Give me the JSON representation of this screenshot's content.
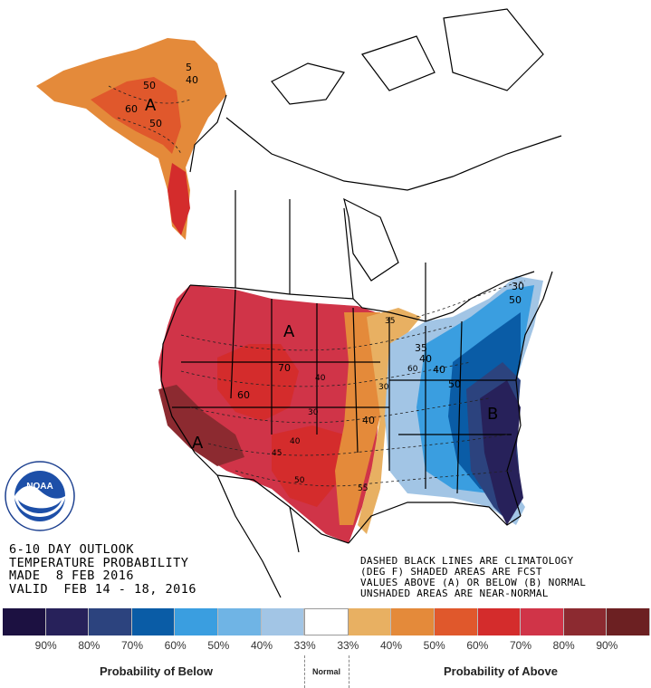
{
  "caption": {
    "line1": "6-10 DAY OUTLOOK",
    "line2": "TEMPERATURE PROBABILITY",
    "line3": "MADE  8 FEB 2016",
    "line4": "VALID  FEB 14 - 18, 2016",
    "note1": "DASHED BLACK LINES ARE CLIMATOLOGY",
    "note2": "(DEG F) SHADED AREAS ARE FCST",
    "note3": "VALUES ABOVE (A) OR BELOW (B) NORMAL",
    "note4": "UNSHADED AREAS ARE NEAR-NORMAL"
  },
  "map_labels": {
    "above_alaska": "A",
    "above_plains": "A",
    "above_southwest": "A",
    "below_east": "B",
    "climo": [
      "5",
      "40",
      "50",
      "60",
      "50",
      "70",
      "60",
      "30",
      "40",
      "45",
      "55",
      "50",
      "40",
      "30",
      "35",
      "40",
      "60",
      "50",
      "40",
      "50",
      "30",
      "35",
      "40"
    ]
  },
  "legend": {
    "colors": [
      "#1c1141",
      "#27215a",
      "#2c437e",
      "#0a5ca6",
      "#3a9ee0",
      "#6fb4e5",
      "#a2c5e5",
      "#ffffff",
      "#e8b062",
      "#e48a3a",
      "#e0582c",
      "#d42c2c",
      "#d03448",
      "#8c2a30",
      "#6c2022"
    ],
    "ticks": [
      "90%",
      "80%",
      "70%",
      "60%",
      "50%",
      "40%",
      "33%",
      "33%",
      "40%",
      "50%",
      "60%",
      "70%",
      "80%",
      "90%"
    ],
    "below_label": "Probability of Below",
    "normal_label": "Normal",
    "above_label": "Probability of Above"
  },
  "logo": {
    "text": "NOAA",
    "ring_text_top": "NATIONAL OCEANIC AND ATMOSPHERIC ADMINISTRATION",
    "ring_text_bottom": "U.S. DEPARTMENT OF COMMERCE"
  }
}
